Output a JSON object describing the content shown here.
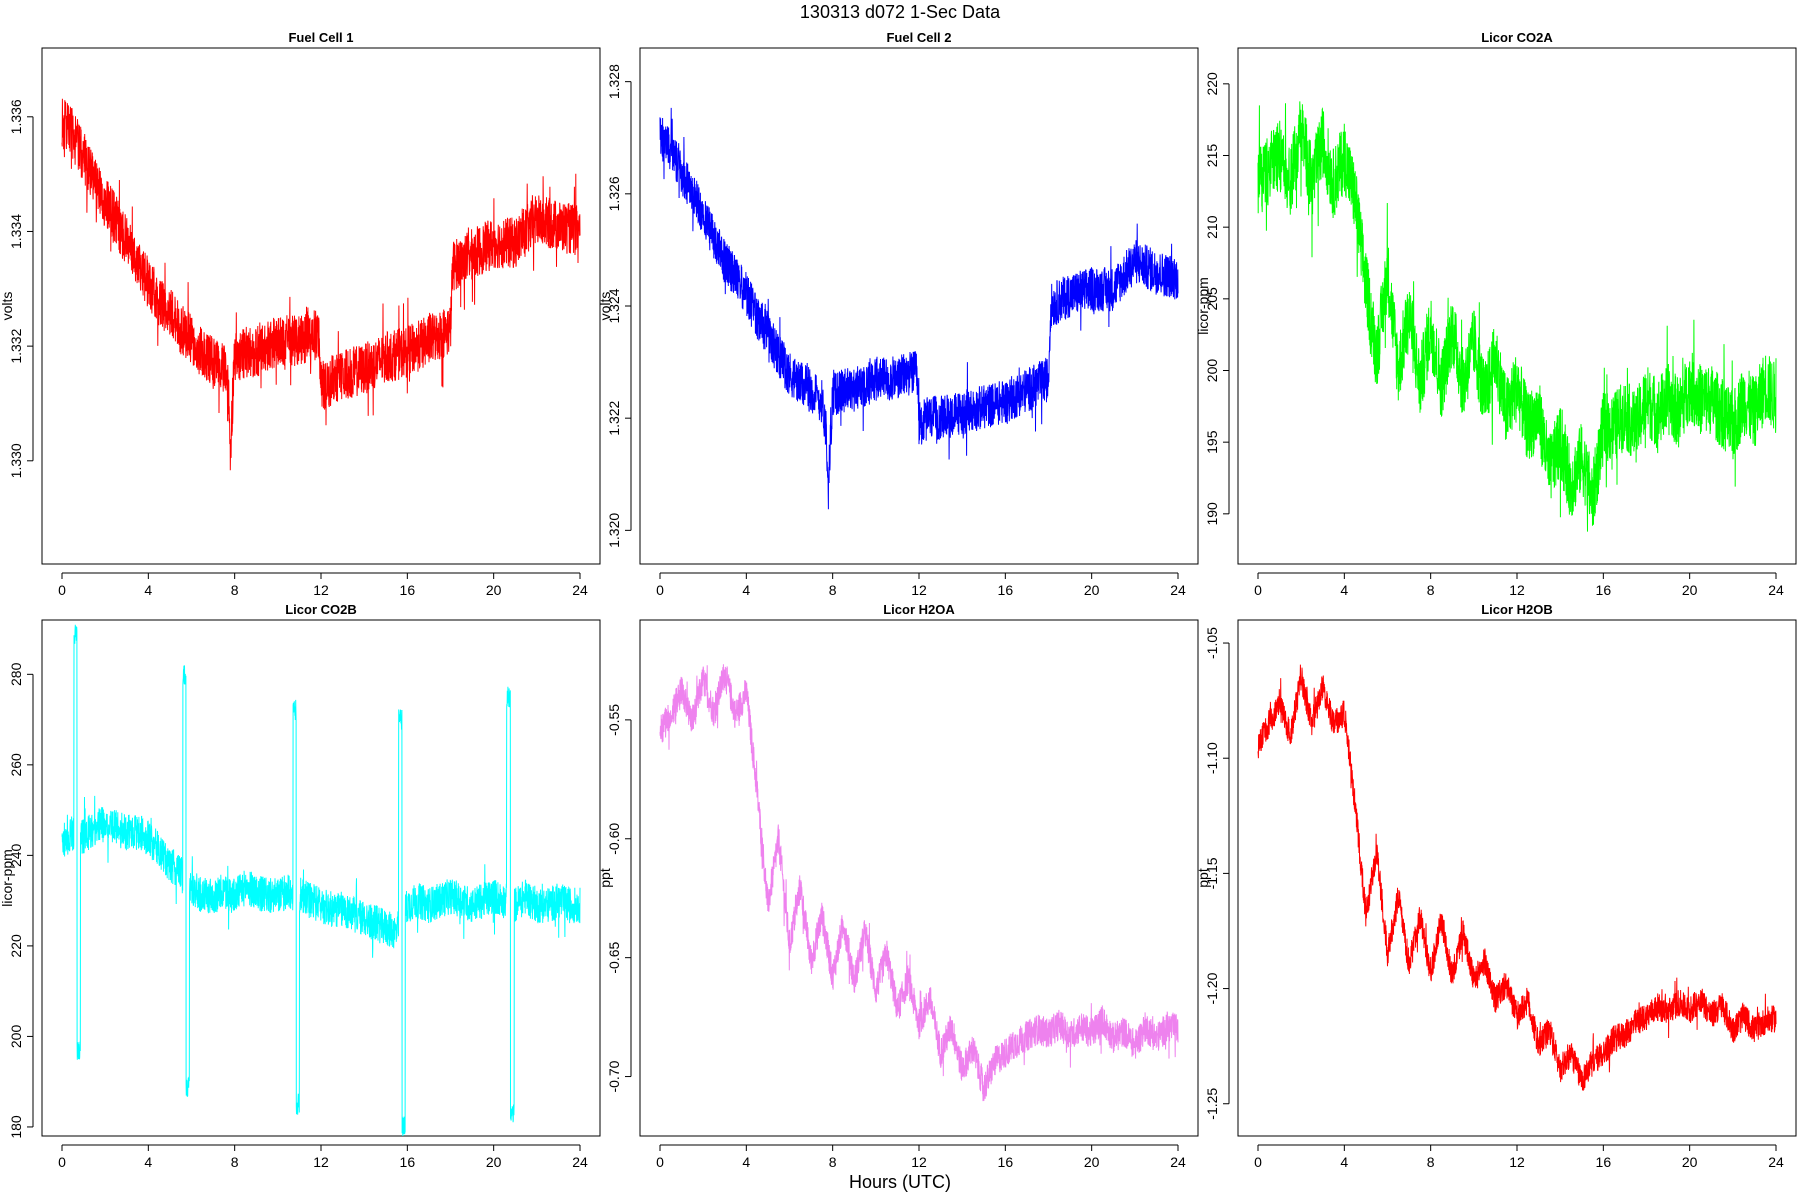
{
  "figure": {
    "title": "130313   d072   1-Sec Data",
    "xlabel": "Hours (UTC)"
  },
  "chart_data": [
    {
      "type": "line",
      "title": "Fuel Cell 1",
      "ylabel": "volts",
      "color": "#ff0000",
      "xlim": [
        0,
        24
      ],
      "ylim": [
        1.3282,
        1.3372
      ],
      "xticks": [
        0,
        4,
        8,
        12,
        16,
        20,
        24
      ],
      "yticks": [
        "1.330",
        "1.332",
        "1.334",
        "1.336"
      ],
      "series": [
        {
          "x": [
            0,
            0.5,
            1,
            1.5,
            2,
            2.5,
            3,
            3.5,
            4,
            4.5,
            5,
            5.5,
            6,
            6.5,
            7,
            7.5,
            7.7,
            7.8,
            8,
            8.5,
            9,
            9.5,
            10,
            10.5,
            11,
            11.5,
            11.9,
            12,
            12.5,
            13,
            14,
            15,
            16,
            17,
            18,
            18.1,
            19,
            20,
            21,
            22,
            23,
            24
          ],
          "y": [
            1.3359,
            1.3357,
            1.3353,
            1.3349,
            1.3345,
            1.3342,
            1.3338,
            1.3335,
            1.3331,
            1.3328,
            1.3326,
            1.3323,
            1.3321,
            1.3319,
            1.3317,
            1.3316,
            1.3312,
            1.3302,
            1.3318,
            1.3319,
            1.3319,
            1.332,
            1.3321,
            1.3321,
            1.3321,
            1.3322,
            1.3322,
            1.3313,
            1.3314,
            1.3315,
            1.3316,
            1.3318,
            1.3319,
            1.3321,
            1.3323,
            1.3334,
            1.3336,
            1.3338,
            1.3338,
            1.3342,
            1.3341,
            1.334
          ],
          "spread": 0.0009
        }
      ]
    },
    {
      "type": "line",
      "title": "Fuel Cell 2",
      "ylabel": "volts",
      "color": "#0000ff",
      "xlim": [
        0,
        24
      ],
      "ylim": [
        1.3194,
        1.3286
      ],
      "xticks": [
        0,
        4,
        8,
        12,
        16,
        20,
        24
      ],
      "yticks": [
        "1.320",
        "1.322",
        "1.324",
        "1.326",
        "1.328"
      ],
      "series": [
        {
          "x": [
            0,
            0.5,
            1,
            1.5,
            2,
            2.5,
            3,
            3.5,
            4,
            4.5,
            5,
            5.5,
            6,
            6.5,
            7,
            7.5,
            7.7,
            7.8,
            8,
            8.5,
            9,
            9.5,
            10,
            10.5,
            11,
            11.5,
            11.9,
            12,
            12.5,
            13,
            14,
            15,
            16,
            17,
            18,
            18.1,
            19,
            20,
            21,
            22,
            23,
            24
          ],
          "y": [
            1.327,
            1.3268,
            1.3264,
            1.326,
            1.3256,
            1.3252,
            1.3248,
            1.3245,
            1.3242,
            1.3238,
            1.3235,
            1.3231,
            1.3228,
            1.3226,
            1.3225,
            1.3223,
            1.3218,
            1.3208,
            1.3224,
            1.3225,
            1.3225,
            1.3226,
            1.3227,
            1.3227,
            1.3227,
            1.3228,
            1.3228,
            1.3219,
            1.322,
            1.322,
            1.3221,
            1.3222,
            1.3223,
            1.3225,
            1.3227,
            1.324,
            1.3242,
            1.3243,
            1.3243,
            1.3248,
            1.3246,
            1.3245
          ],
          "spread": 0.0008
        }
      ]
    },
    {
      "type": "line",
      "title": "Licor CO2A",
      "ylabel": "licor-ppm",
      "color": "#00ff00",
      "xlim": [
        0,
        24
      ],
      "ylim": [
        186.5,
        222.5
      ],
      "xticks": [
        0,
        4,
        8,
        12,
        16,
        20,
        24
      ],
      "yticks": [
        "190",
        "195",
        "200",
        "205",
        "210",
        "215",
        "220"
      ],
      "series": [
        {
          "x": [
            0,
            0.5,
            1,
            1.5,
            2,
            2.5,
            3,
            3.5,
            4,
            4.5,
            5,
            5.5,
            6,
            6.5,
            7,
            7.5,
            8,
            8.5,
            9,
            9.5,
            10,
            10.5,
            11,
            11.5,
            12,
            12.5,
            13,
            13.5,
            14,
            14.5,
            15,
            15.5,
            16,
            16.5,
            17,
            17.5,
            18,
            18.5,
            19,
            19.5,
            20,
            20.5,
            21,
            21.5,
            22,
            22.5,
            23,
            23.5,
            24
          ],
          "y": [
            213,
            214,
            215,
            213,
            217,
            213,
            216,
            213,
            215,
            212,
            206,
            201,
            207,
            200,
            204,
            199,
            203,
            199,
            203,
            199,
            202,
            198,
            201,
            197,
            199,
            196,
            197,
            193,
            195,
            192,
            194,
            191,
            196,
            196,
            197,
            196,
            198,
            197,
            198,
            197,
            199,
            198,
            198,
            197,
            196,
            198,
            197,
            199,
            198
          ],
          "spread": 5
        }
      ]
    },
    {
      "type": "line",
      "title": "Licor CO2B",
      "ylabel": "licor-ppm",
      "color": "#00ffff",
      "xlim": [
        0,
        24
      ],
      "ylim": [
        178,
        292
      ],
      "xticks": [
        0,
        4,
        8,
        12,
        16,
        20,
        24
      ],
      "yticks": [
        "180",
        "200",
        "220",
        "240",
        "260",
        "280"
      ],
      "series": [
        {
          "x": [
            0,
            0.5,
            1,
            1.5,
            2,
            2.5,
            3,
            3.5,
            4,
            4.5,
            5,
            5.5,
            6,
            6.5,
            7,
            7.5,
            8,
            8.5,
            9,
            9.5,
            10,
            10.5,
            11,
            11.5,
            12,
            12.5,
            13,
            13.5,
            14,
            14.5,
            15,
            15.5,
            16,
            16.5,
            17,
            17.5,
            18,
            18.5,
            19,
            19.5,
            20,
            20.5,
            21,
            21.5,
            22,
            22.5,
            23,
            23.5,
            24
          ],
          "y": [
            243,
            245,
            244,
            246,
            247,
            246,
            245,
            245,
            244,
            241,
            238,
            236,
            233,
            231,
            231,
            232,
            231,
            233,
            232,
            231,
            231,
            232,
            231,
            230,
            229,
            228,
            228,
            227,
            226,
            225,
            224,
            223,
            229,
            230,
            229,
            230,
            231,
            230,
            229,
            230,
            231,
            230,
            229,
            231,
            229,
            229,
            230,
            229,
            229
          ],
          "spread": 8,
          "spikes": [
            [
              0.55,
              0.85,
              289,
              197
            ],
            [
              5.6,
              5.9,
              280,
              189
            ],
            [
              10.7,
              11.0,
              272,
              185
            ],
            [
              15.6,
              15.9,
              270,
              180
            ],
            [
              20.6,
              20.95,
              275,
              183
            ]
          ]
        }
      ]
    },
    {
      "type": "line",
      "title": "Licor H2OA",
      "ylabel": "ppt",
      "color": "#ee82ee",
      "xlim": [
        0,
        24
      ],
      "ylim": [
        -0.725,
        -0.508
      ],
      "xticks": [
        0,
        4,
        8,
        12,
        16,
        20,
        24
      ],
      "yticks": [
        "-0.70",
        "-0.65",
        "-0.60",
        "-0.55"
      ],
      "series": [
        {
          "x": [
            0,
            0.5,
            1,
            1.5,
            2,
            2.5,
            3,
            3.5,
            4,
            4.5,
            5,
            5.5,
            6,
            6.5,
            7,
            7.5,
            8,
            8.5,
            9,
            9.5,
            10,
            10.5,
            11,
            11.5,
            12,
            12.5,
            13,
            13.5,
            14,
            14.5,
            15,
            15.5,
            16,
            16.5,
            17,
            17.5,
            18,
            18.5,
            19,
            19.5,
            20,
            20.5,
            21,
            21.5,
            22,
            22.5,
            23,
            23.5,
            24
          ],
          "y": [
            -0.555,
            -0.548,
            -0.538,
            -0.551,
            -0.533,
            -0.547,
            -0.53,
            -0.548,
            -0.538,
            -0.58,
            -0.628,
            -0.6,
            -0.645,
            -0.62,
            -0.652,
            -0.632,
            -0.658,
            -0.635,
            -0.66,
            -0.639,
            -0.664,
            -0.648,
            -0.672,
            -0.659,
            -0.678,
            -0.667,
            -0.69,
            -0.679,
            -0.697,
            -0.688,
            -0.705,
            -0.694,
            -0.69,
            -0.686,
            -0.683,
            -0.68,
            -0.682,
            -0.678,
            -0.683,
            -0.679,
            -0.682,
            -0.676,
            -0.684,
            -0.681,
            -0.687,
            -0.679,
            -0.684,
            -0.679,
            -0.68
          ],
          "spread": 0.013
        }
      ]
    },
    {
      "type": "line",
      "title": "Licor H2OB",
      "ylabel": "ppt",
      "color": "#ff0000",
      "xlim": [
        0,
        24
      ],
      "ylim": [
        -1.264,
        -1.04
      ],
      "xticks": [
        0,
        4,
        8,
        12,
        16,
        20,
        24
      ],
      "yticks": [
        "-1.25",
        "-1.20",
        "-1.15",
        "-1.10",
        "-1.05"
      ],
      "series": [
        {
          "x": [
            0,
            0.5,
            1,
            1.5,
            2,
            2.5,
            3,
            3.5,
            4,
            4.5,
            5,
            5.5,
            6,
            6.5,
            7,
            7.5,
            8,
            8.5,
            9,
            9.5,
            10,
            10.5,
            11,
            11.5,
            12,
            12.5,
            13,
            13.5,
            14,
            14.5,
            15,
            15.5,
            16,
            16.5,
            17,
            17.5,
            18,
            18.5,
            19,
            19.5,
            20,
            20.5,
            21,
            21.5,
            22,
            22.5,
            23,
            23.5,
            24
          ],
          "y": [
            -1.095,
            -1.085,
            -1.077,
            -1.09,
            -1.065,
            -1.085,
            -1.068,
            -1.086,
            -1.08,
            -1.12,
            -1.168,
            -1.14,
            -1.185,
            -1.16,
            -1.19,
            -1.168,
            -1.193,
            -1.17,
            -1.195,
            -1.175,
            -1.197,
            -1.188,
            -1.205,
            -1.198,
            -1.212,
            -1.205,
            -1.225,
            -1.218,
            -1.235,
            -1.228,
            -1.24,
            -1.232,
            -1.228,
            -1.222,
            -1.22,
            -1.215,
            -1.212,
            -1.208,
            -1.21,
            -1.206,
            -1.21,
            -1.204,
            -1.212,
            -1.207,
            -1.218,
            -1.212,
            -1.218,
            -1.214,
            -1.213
          ],
          "spread": 0.012
        }
      ]
    }
  ]
}
